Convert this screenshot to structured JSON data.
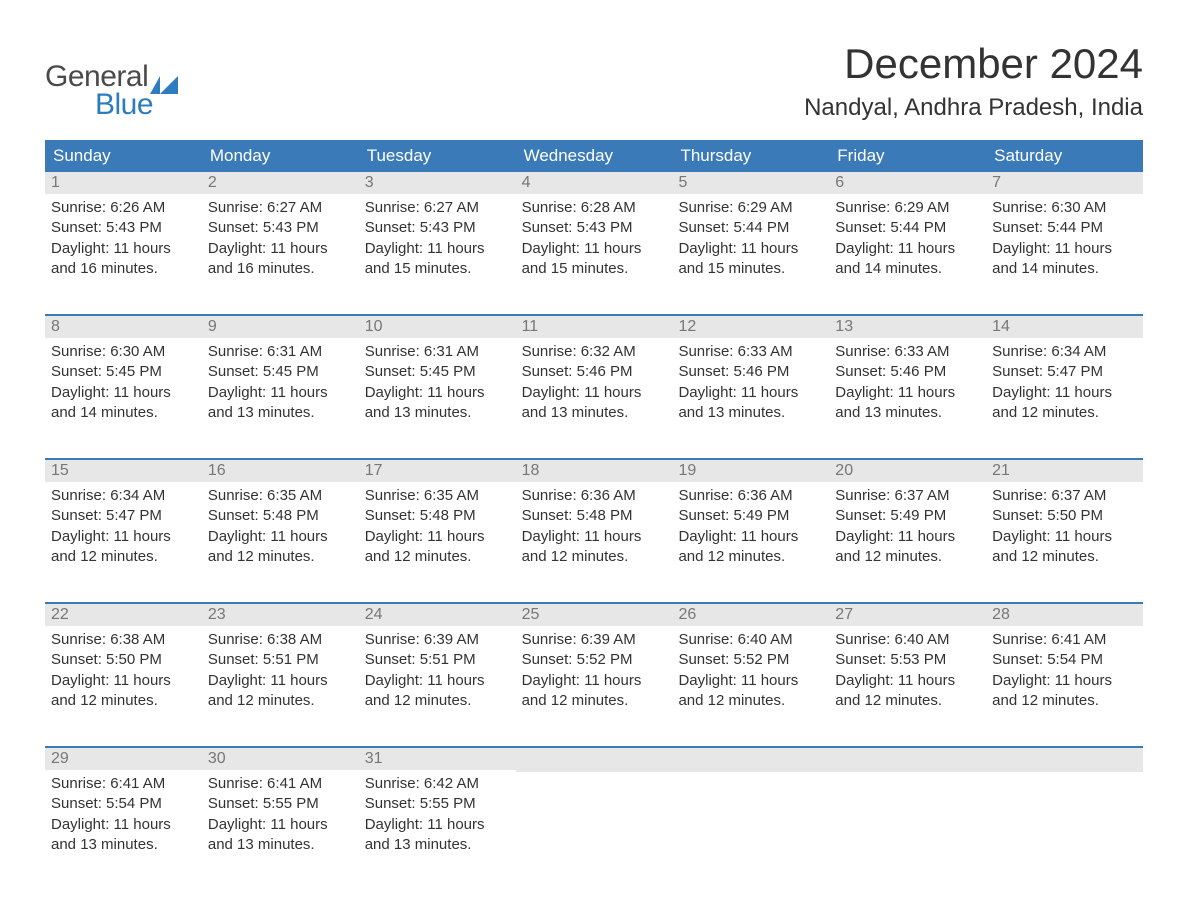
{
  "brand": {
    "text1": "General",
    "text2": "Blue",
    "flag_color": "#2e7cc0"
  },
  "title": "December 2024",
  "location": "Nandyal, Andhra Pradesh, India",
  "colors": {
    "header_bg": "#3a7ab8",
    "header_text": "#ffffff",
    "daynum_bg": "#e7e7e7",
    "daynum_text": "#777777",
    "body_text": "#333333",
    "week_border": "#3a7ab8",
    "background": "#ffffff"
  },
  "weekdays": [
    "Sunday",
    "Monday",
    "Tuesday",
    "Wednesday",
    "Thursday",
    "Friday",
    "Saturday"
  ],
  "labels": {
    "sunrise": "Sunrise:",
    "sunset": "Sunset:",
    "daylight": "Daylight:"
  },
  "weeks": [
    [
      {
        "n": "1",
        "sr": "6:26 AM",
        "ss": "5:43 PM",
        "dl": "11 hours and 16 minutes."
      },
      {
        "n": "2",
        "sr": "6:27 AM",
        "ss": "5:43 PM",
        "dl": "11 hours and 16 minutes."
      },
      {
        "n": "3",
        "sr": "6:27 AM",
        "ss": "5:43 PM",
        "dl": "11 hours and 15 minutes."
      },
      {
        "n": "4",
        "sr": "6:28 AM",
        "ss": "5:43 PM",
        "dl": "11 hours and 15 minutes."
      },
      {
        "n": "5",
        "sr": "6:29 AM",
        "ss": "5:44 PM",
        "dl": "11 hours and 15 minutes."
      },
      {
        "n": "6",
        "sr": "6:29 AM",
        "ss": "5:44 PM",
        "dl": "11 hours and 14 minutes."
      },
      {
        "n": "7",
        "sr": "6:30 AM",
        "ss": "5:44 PM",
        "dl": "11 hours and 14 minutes."
      }
    ],
    [
      {
        "n": "8",
        "sr": "6:30 AM",
        "ss": "5:45 PM",
        "dl": "11 hours and 14 minutes."
      },
      {
        "n": "9",
        "sr": "6:31 AM",
        "ss": "5:45 PM",
        "dl": "11 hours and 13 minutes."
      },
      {
        "n": "10",
        "sr": "6:31 AM",
        "ss": "5:45 PM",
        "dl": "11 hours and 13 minutes."
      },
      {
        "n": "11",
        "sr": "6:32 AM",
        "ss": "5:46 PM",
        "dl": "11 hours and 13 minutes."
      },
      {
        "n": "12",
        "sr": "6:33 AM",
        "ss": "5:46 PM",
        "dl": "11 hours and 13 minutes."
      },
      {
        "n": "13",
        "sr": "6:33 AM",
        "ss": "5:46 PM",
        "dl": "11 hours and 13 minutes."
      },
      {
        "n": "14",
        "sr": "6:34 AM",
        "ss": "5:47 PM",
        "dl": "11 hours and 12 minutes."
      }
    ],
    [
      {
        "n": "15",
        "sr": "6:34 AM",
        "ss": "5:47 PM",
        "dl": "11 hours and 12 minutes."
      },
      {
        "n": "16",
        "sr": "6:35 AM",
        "ss": "5:48 PM",
        "dl": "11 hours and 12 minutes."
      },
      {
        "n": "17",
        "sr": "6:35 AM",
        "ss": "5:48 PM",
        "dl": "11 hours and 12 minutes."
      },
      {
        "n": "18",
        "sr": "6:36 AM",
        "ss": "5:48 PM",
        "dl": "11 hours and 12 minutes."
      },
      {
        "n": "19",
        "sr": "6:36 AM",
        "ss": "5:49 PM",
        "dl": "11 hours and 12 minutes."
      },
      {
        "n": "20",
        "sr": "6:37 AM",
        "ss": "5:49 PM",
        "dl": "11 hours and 12 minutes."
      },
      {
        "n": "21",
        "sr": "6:37 AM",
        "ss": "5:50 PM",
        "dl": "11 hours and 12 minutes."
      }
    ],
    [
      {
        "n": "22",
        "sr": "6:38 AM",
        "ss": "5:50 PM",
        "dl": "11 hours and 12 minutes."
      },
      {
        "n": "23",
        "sr": "6:38 AM",
        "ss": "5:51 PM",
        "dl": "11 hours and 12 minutes."
      },
      {
        "n": "24",
        "sr": "6:39 AM",
        "ss": "5:51 PM",
        "dl": "11 hours and 12 minutes."
      },
      {
        "n": "25",
        "sr": "6:39 AM",
        "ss": "5:52 PM",
        "dl": "11 hours and 12 minutes."
      },
      {
        "n": "26",
        "sr": "6:40 AM",
        "ss": "5:52 PM",
        "dl": "11 hours and 12 minutes."
      },
      {
        "n": "27",
        "sr": "6:40 AM",
        "ss": "5:53 PM",
        "dl": "11 hours and 12 minutes."
      },
      {
        "n": "28",
        "sr": "6:41 AM",
        "ss": "5:54 PM",
        "dl": "11 hours and 12 minutes."
      }
    ],
    [
      {
        "n": "29",
        "sr": "6:41 AM",
        "ss": "5:54 PM",
        "dl": "11 hours and 13 minutes."
      },
      {
        "n": "30",
        "sr": "6:41 AM",
        "ss": "5:55 PM",
        "dl": "11 hours and 13 minutes."
      },
      {
        "n": "31",
        "sr": "6:42 AM",
        "ss": "5:55 PM",
        "dl": "11 hours and 13 minutes."
      },
      {
        "empty": true
      },
      {
        "empty": true
      },
      {
        "empty": true
      },
      {
        "empty": true
      }
    ]
  ]
}
